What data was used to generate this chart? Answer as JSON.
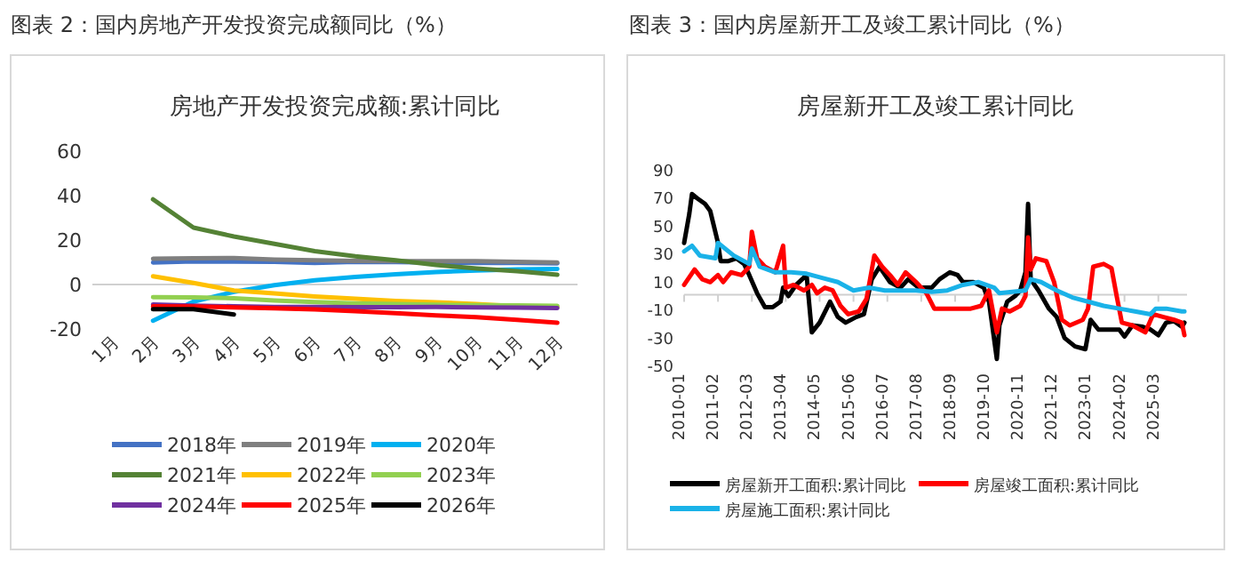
{
  "chart_data": [
    {
      "type": "line",
      "title": "图表 2：国内房地产开发投资完成额同比（%）",
      "subtitle": "房地产开发投资完成额:累计同比",
      "categories": [
        "1月",
        "2月",
        "3月",
        "4月",
        "5月",
        "6月",
        "7月",
        "8月",
        "9月",
        "10月",
        "11月",
        "12月"
      ],
      "ylim": [
        -20,
        60
      ],
      "yticks": [
        -20,
        0,
        20,
        40,
        60
      ],
      "legend": "bottom",
      "series": [
        {
          "name": "2018年",
          "color": "#4472c4",
          "values": [
            null,
            9.9,
            10.4,
            10.3,
            10.2,
            9.7,
            10.2,
            10.1,
            9.9,
            9.7,
            9.7,
            9.5
          ]
        },
        {
          "name": "2019年",
          "color": "#7f7f7f",
          "values": [
            null,
            11.6,
            11.8,
            11.9,
            11.2,
            10.9,
            10.6,
            10.5,
            10.5,
            10.5,
            10.2,
            9.9
          ]
        },
        {
          "name": "2020年",
          "color": "#00b0f0",
          "values": [
            null,
            -16.3,
            -7.7,
            -3.3,
            -0.3,
            1.9,
            3.4,
            4.6,
            5.6,
            6.3,
            6.8,
            7.0
          ]
        },
        {
          "name": "2021年",
          "color": "#548235",
          "values": [
            null,
            38.3,
            25.6,
            21.6,
            18.3,
            15.0,
            12.7,
            10.9,
            8.8,
            7.2,
            6.0,
            4.4
          ]
        },
        {
          "name": "2022年",
          "color": "#ffc000",
          "values": [
            null,
            3.7,
            0.7,
            -2.7,
            -4.0,
            -5.4,
            -6.4,
            -7.4,
            -8.0,
            -8.8,
            -9.8,
            -10.0
          ]
        },
        {
          "name": "2023年",
          "color": "#92d050",
          "values": [
            null,
            -5.7,
            -5.8,
            -6.2,
            -7.2,
            -7.9,
            -8.5,
            -8.8,
            -9.1,
            -9.3,
            -9.4,
            -9.6
          ]
        },
        {
          "name": "2024年",
          "color": "#7030a0",
          "values": [
            null,
            -9.0,
            -9.5,
            -9.8,
            -10.1,
            -10.1,
            -10.2,
            -10.2,
            -10.1,
            -10.3,
            -10.4,
            -10.6
          ]
        },
        {
          "name": "2025年",
          "color": "#ff0000",
          "values": [
            null,
            -9.8,
            -9.9,
            -10.3,
            -10.7,
            -11.2,
            -12.0,
            -12.9,
            -13.9,
            -14.7,
            -15.9,
            -17.2
          ]
        },
        {
          "name": "2026年",
          "color": "#000000",
          "values": [
            null,
            -11.1,
            -11.1,
            -13.5,
            null,
            null,
            null,
            null,
            null,
            null,
            null,
            null
          ]
        }
      ]
    },
    {
      "type": "line",
      "title": "图表 3：国内房屋新开工及竣工累计同比（%）",
      "subtitle": "房屋新开工及竣工累计同比",
      "xlim": [
        "2010-01",
        "2026-02"
      ],
      "xticks": [
        "2010-01",
        "2011-02",
        "2012-03",
        "2013-04",
        "2014-05",
        "2015-06",
        "2016-07",
        "2017-08",
        "2018-09",
        "2019-10",
        "2020-11",
        "2021-12",
        "2023-01",
        "2024-02",
        "2025-03"
      ],
      "ylim": [
        -50,
        90
      ],
      "yticks": [
        -50,
        -30,
        -10,
        10,
        30,
        50,
        70,
        90
      ],
      "legend": "bottom",
      "series": [
        {
          "name": "房屋新开工面积:累计同比",
          "color": "#000000",
          "x": [
            "2010-01",
            "2010-03",
            "2010-04",
            "2010-06",
            "2010-09",
            "2010-11",
            "2011-02",
            "2011-03",
            "2011-06",
            "2011-09",
            "2011-12",
            "2012-02",
            "2012-05",
            "2012-08",
            "2012-11",
            "2013-02",
            "2013-03",
            "2013-05",
            "2013-08",
            "2013-12",
            "2014-02",
            "2014-05",
            "2014-09",
            "2014-12",
            "2015-03",
            "2015-07",
            "2015-10",
            "2016-01",
            "2016-04",
            "2016-08",
            "2016-12",
            "2017-03",
            "2017-07",
            "2017-12",
            "2018-03",
            "2018-07",
            "2018-10",
            "2018-12",
            "2019-04",
            "2019-08",
            "2019-10",
            "2020-01",
            "2020-02",
            "2020-05",
            "2020-08",
            "2020-10",
            "2020-12",
            "2021-01",
            "2021-02",
            "2021-05",
            "2021-09",
            "2021-12",
            "2022-03",
            "2022-07",
            "2022-11",
            "2023-01",
            "2023-04",
            "2023-08",
            "2023-12",
            "2024-02",
            "2024-05",
            "2024-09",
            "2024-12",
            "2025-03",
            "2025-06",
            "2025-09",
            "2025-12",
            "2026-01"
          ],
          "values": [
            37,
            58,
            72,
            69,
            65,
            60,
            37,
            24,
            24,
            26,
            22,
            14,
            1,
            -9,
            -9,
            -5,
            5,
            -1,
            7,
            14,
            -27,
            -20,
            -5,
            -16,
            -20,
            -16,
            -14,
            11,
            20,
            9,
            5,
            11,
            5,
            5,
            11,
            16,
            14,
            9,
            9,
            5,
            -5,
            -46,
            -22,
            -5,
            -1,
            3,
            16,
            65,
            11,
            3,
            -10,
            -16,
            -31,
            -37,
            -39,
            -18,
            -25,
            -25,
            -25,
            -30,
            -22,
            -23,
            -25,
            -29,
            -20,
            -19,
            -23,
            -20
          ]
        },
        {
          "name": "房屋竣工面积:累计同比",
          "color": "#ff0000",
          "x": [
            "2010-01",
            "2010-05",
            "2010-08",
            "2010-11",
            "2011-02",
            "2011-04",
            "2011-07",
            "2011-11",
            "2012-02",
            "2012-03",
            "2012-05",
            "2012-08",
            "2012-12",
            "2013-03",
            "2013-04",
            "2013-07",
            "2013-11",
            "2014-02",
            "2014-04",
            "2014-07",
            "2014-10",
            "2015-01",
            "2015-04",
            "2015-08",
            "2015-11",
            "2016-02",
            "2016-05",
            "2016-08",
            "2016-11",
            "2017-02",
            "2017-06",
            "2017-10",
            "2018-01",
            "2018-05",
            "2018-10",
            "2019-03",
            "2019-07",
            "2019-10",
            "2020-01",
            "2020-03",
            "2020-06",
            "2020-10",
            "2020-12",
            "2021-01",
            "2021-02",
            "2021-04",
            "2021-08",
            "2021-11",
            "2022-02",
            "2022-05",
            "2022-10",
            "2022-12",
            "2023-02",
            "2023-06",
            "2023-09",
            "2023-11",
            "2024-01",
            "2024-05",
            "2024-10",
            "2025-01",
            "2025-05",
            "2025-09",
            "2025-12",
            "2026-01"
          ],
          "values": [
            7,
            18,
            11,
            9,
            14,
            9,
            16,
            14,
            20,
            45,
            26,
            20,
            16,
            35,
            5,
            7,
            3,
            7,
            1,
            5,
            3,
            -8,
            -14,
            -12,
            -3,
            28,
            20,
            14,
            7,
            16,
            9,
            1,
            -10,
            -10,
            -10,
            -10,
            -8,
            3,
            -27,
            -10,
            -12,
            -8,
            -1,
            41,
            18,
            26,
            24,
            9,
            -18,
            -22,
            -18,
            -10,
            20,
            22,
            19,
            -1,
            -20,
            -22,
            -27,
            -14,
            -16,
            -18,
            -20,
            -29
          ]
        },
        {
          "name": "房屋施工面积:累计同比",
          "color": "#1ab2e8",
          "x": [
            "2010-01",
            "2010-04",
            "2010-07",
            "2011-01",
            "2011-02",
            "2011-08",
            "2012-02",
            "2012-03",
            "2012-06",
            "2012-12",
            "2013-06",
            "2013-12",
            "2014-06",
            "2014-12",
            "2015-06",
            "2015-12",
            "2016-06",
            "2016-12",
            "2017-06",
            "2017-12",
            "2018-06",
            "2018-12",
            "2019-06",
            "2019-12",
            "2020-02",
            "2020-12",
            "2021-02",
            "2021-06",
            "2021-12",
            "2022-06",
            "2022-12",
            "2023-06",
            "2023-12",
            "2024-06",
            "2024-12",
            "2025-02",
            "2025-06",
            "2025-12",
            "2026-01"
          ],
          "values": [
            31,
            35,
            28,
            26,
            37,
            28,
            22,
            33,
            20,
            16,
            16,
            15,
            12,
            9,
            3,
            5,
            3,
            3,
            3,
            2,
            3,
            7,
            9,
            5,
            1,
            3,
            11,
            9,
            3,
            -2,
            -5,
            -8,
            -10,
            -12,
            -14,
            -10,
            -10,
            -12,
            -12
          ]
        }
      ]
    }
  ]
}
